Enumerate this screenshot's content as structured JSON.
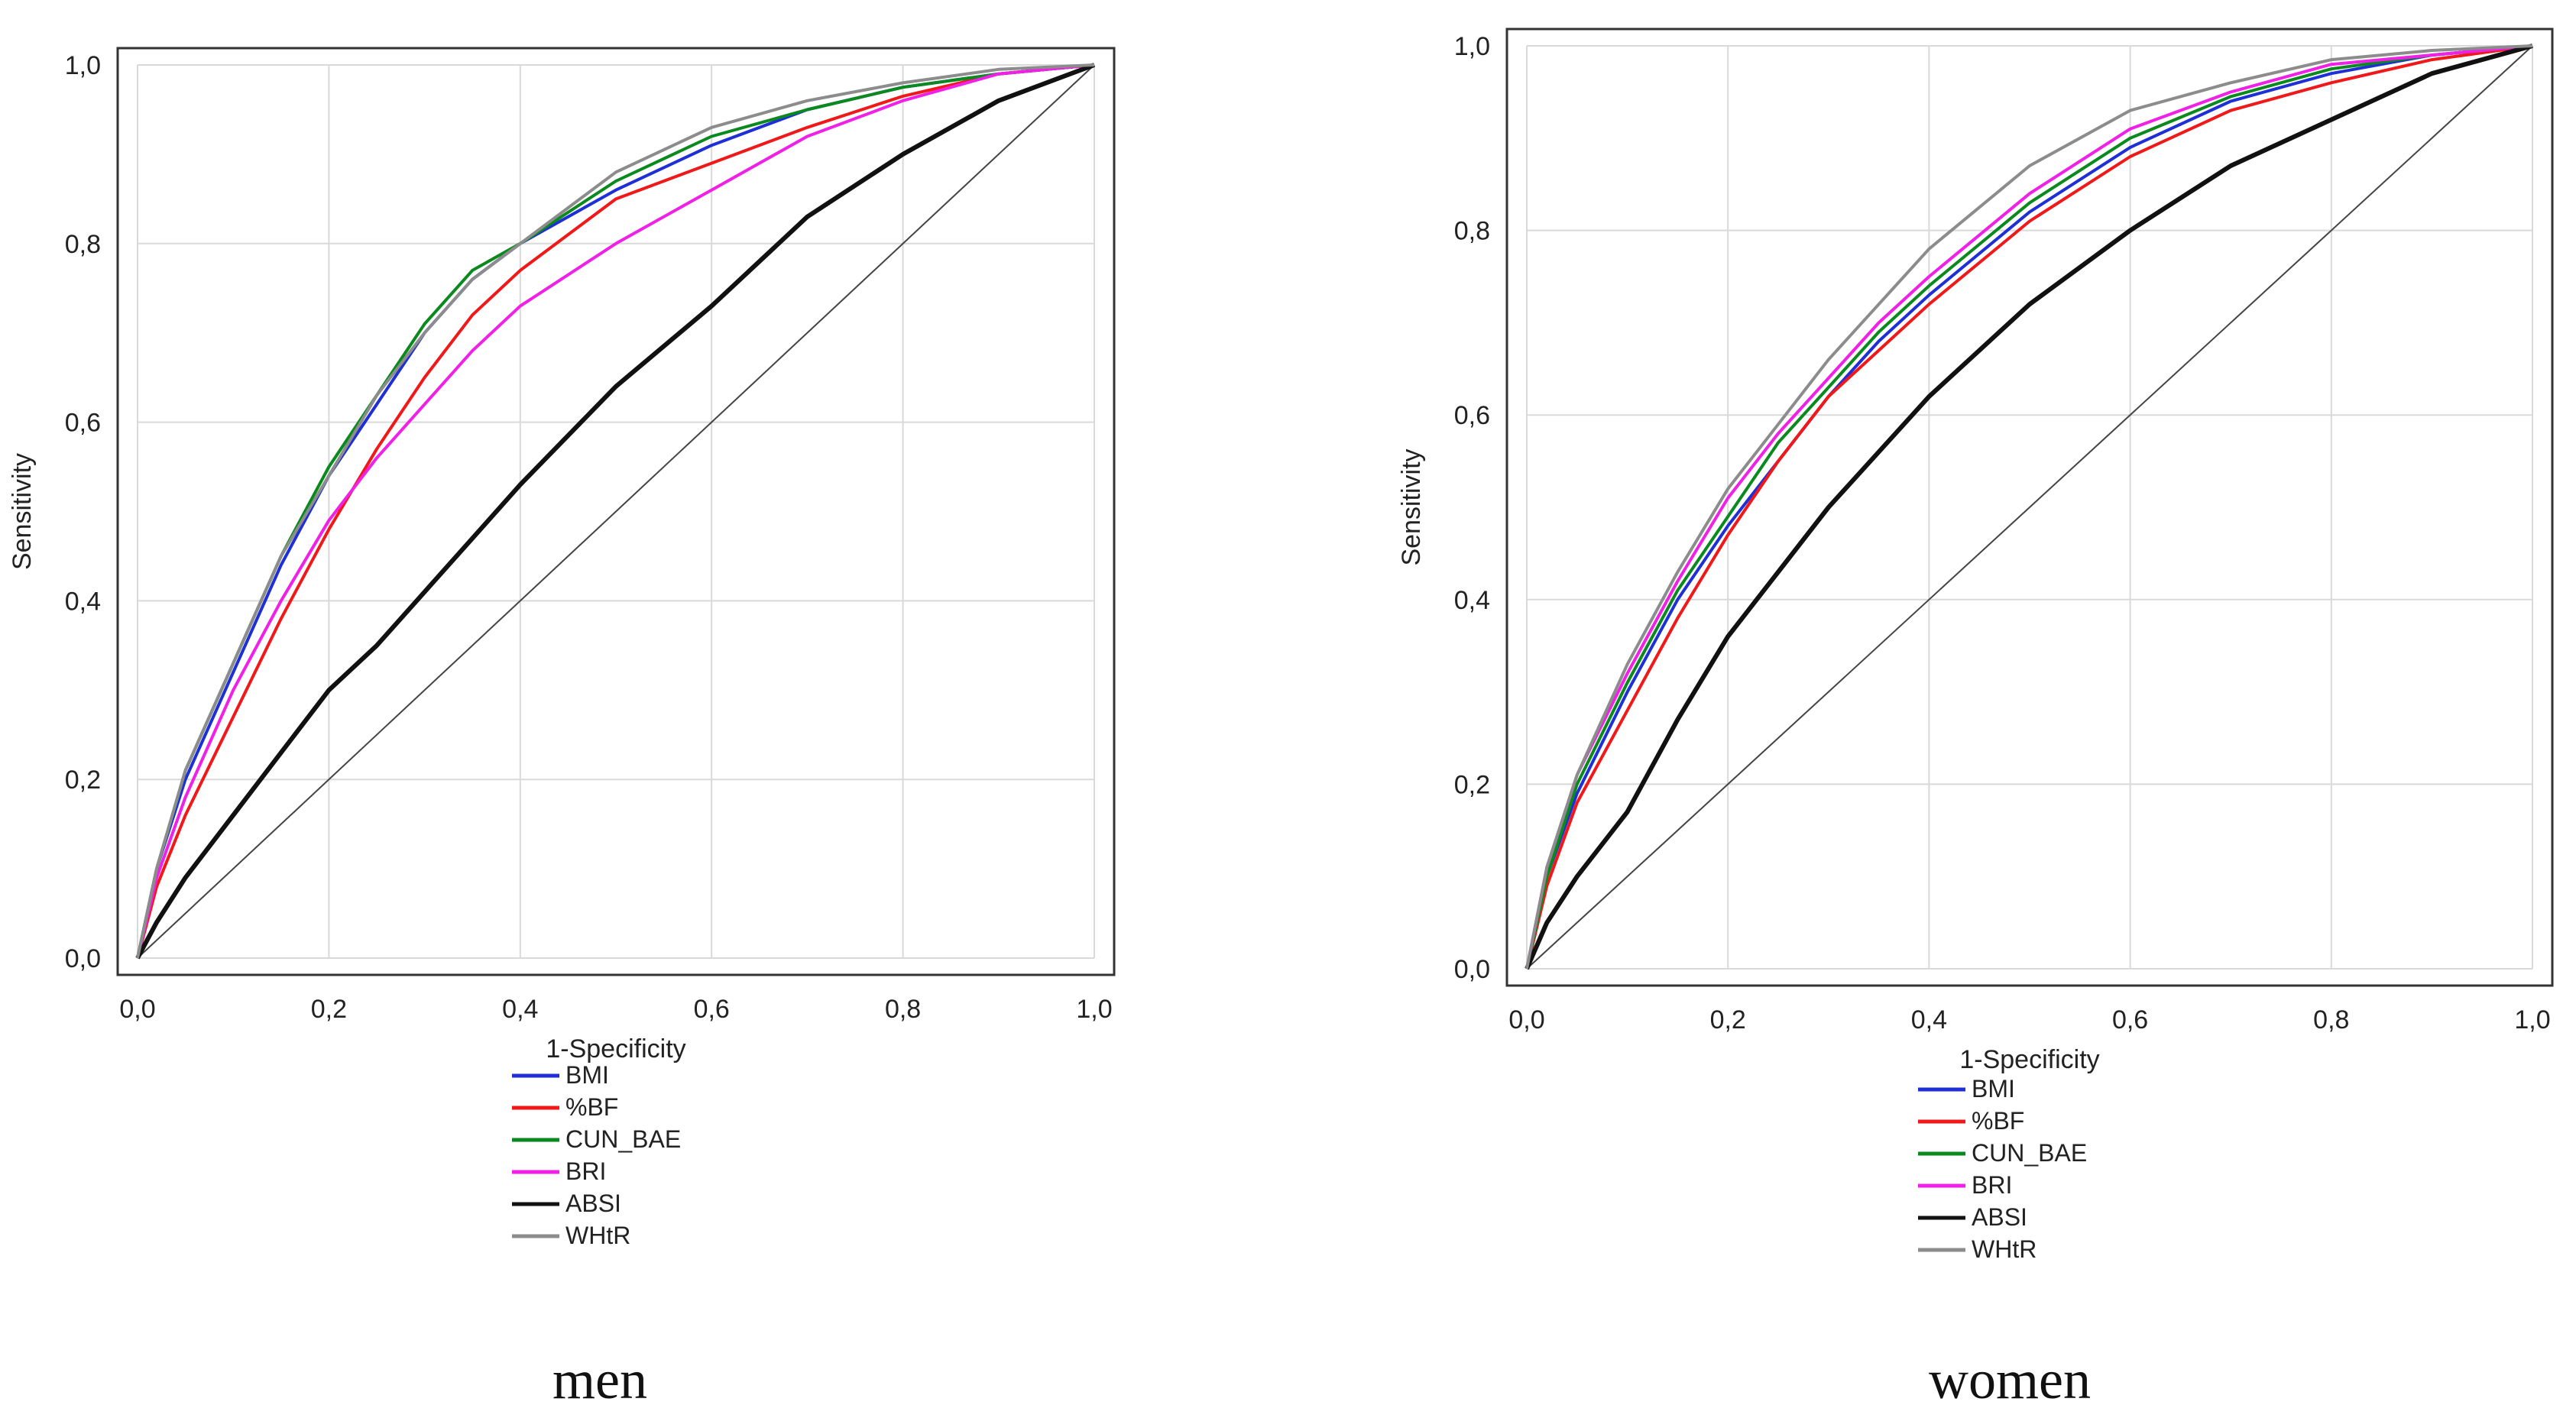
{
  "colors": {
    "BMI": "#1f2fd6",
    "%BF": "#f01818",
    "CUN_BAE": "#0a8a1e",
    "BRI": "#f020e6",
    "ABSI": "#111111",
    "WHtR": "#8c8c8c",
    "reference": "#444444",
    "grid": "#d9d9d9"
  },
  "chart_data": [
    {
      "type": "line",
      "caption": "men",
      "xlabel": "1-Specificity",
      "ylabel": "Sensitivity",
      "xlim": [
        0,
        1
      ],
      "ylim": [
        0,
        1
      ],
      "grid": true,
      "xticks": [
        "0,0",
        "0,2",
        "0,4",
        "0,6",
        "0,8",
        "1,0"
      ],
      "yticks": [
        "0,0",
        "0,2",
        "0,4",
        "0,6",
        "0,8",
        "1,0"
      ],
      "legend_position": "bottom",
      "legend": [
        "BMI",
        "%BF",
        "CUN_BAE",
        "BRI",
        "ABSI",
        "WHtR"
      ],
      "x": [
        0,
        0.02,
        0.05,
        0.1,
        0.15,
        0.2,
        0.25,
        0.3,
        0.35,
        0.4,
        0.5,
        0.6,
        0.7,
        0.8,
        0.9,
        1.0
      ],
      "series": [
        {
          "name": "BMI",
          "values": [
            0,
            0.1,
            0.2,
            0.32,
            0.44,
            0.54,
            0.62,
            0.7,
            0.76,
            0.8,
            0.86,
            0.91,
            0.95,
            0.975,
            0.99,
            1.0
          ]
        },
        {
          "name": "%BF",
          "values": [
            0,
            0.08,
            0.16,
            0.27,
            0.38,
            0.48,
            0.57,
            0.65,
            0.72,
            0.77,
            0.85,
            0.89,
            0.93,
            0.965,
            0.99,
            1.0
          ]
        },
        {
          "name": "CUN_BAE",
          "values": [
            0,
            0.1,
            0.21,
            0.33,
            0.45,
            0.55,
            0.63,
            0.71,
            0.77,
            0.8,
            0.87,
            0.92,
            0.95,
            0.975,
            0.99,
            1.0
          ]
        },
        {
          "name": "BRI",
          "values": [
            0,
            0.09,
            0.18,
            0.3,
            0.4,
            0.49,
            0.56,
            0.62,
            0.68,
            0.73,
            0.8,
            0.86,
            0.92,
            0.96,
            0.99,
            1.0
          ]
        },
        {
          "name": "ABSI",
          "values": [
            0,
            0.04,
            0.09,
            0.16,
            0.23,
            0.3,
            0.35,
            0.41,
            0.47,
            0.53,
            0.64,
            0.73,
            0.83,
            0.9,
            0.96,
            1.0
          ]
        },
        {
          "name": "WHtR",
          "values": [
            0,
            0.1,
            0.21,
            0.33,
            0.45,
            0.54,
            0.63,
            0.7,
            0.76,
            0.8,
            0.88,
            0.93,
            0.96,
            0.98,
            0.995,
            1.0
          ]
        }
      ]
    },
    {
      "type": "line",
      "caption": "women",
      "xlabel": "1-Specificity",
      "ylabel": "Sensitivity",
      "xlim": [
        0,
        1
      ],
      "ylim": [
        0,
        1
      ],
      "grid": true,
      "xticks": [
        "0,0",
        "0,2",
        "0,4",
        "0,6",
        "0,8",
        "1,0"
      ],
      "yticks": [
        "0,0",
        "0,2",
        "0,4",
        "0,6",
        "0,8",
        "1,0"
      ],
      "legend_position": "bottom",
      "legend": [
        "BMI",
        "%BF",
        "CUN_BAE",
        "BRI",
        "ABSI",
        "WHtR"
      ],
      "x": [
        0,
        0.02,
        0.05,
        0.1,
        0.15,
        0.2,
        0.25,
        0.3,
        0.35,
        0.4,
        0.5,
        0.6,
        0.7,
        0.8,
        0.9,
        1.0
      ],
      "series": [
        {
          "name": "BMI",
          "values": [
            0,
            0.1,
            0.19,
            0.3,
            0.4,
            0.48,
            0.55,
            0.62,
            0.68,
            0.73,
            0.82,
            0.89,
            0.94,
            0.97,
            0.99,
            1.0
          ]
        },
        {
          "name": "%BF",
          "values": [
            0,
            0.09,
            0.18,
            0.28,
            0.38,
            0.47,
            0.55,
            0.62,
            0.67,
            0.72,
            0.81,
            0.88,
            0.93,
            0.96,
            0.985,
            1.0
          ]
        },
        {
          "name": "CUN_BAE",
          "values": [
            0,
            0.1,
            0.2,
            0.31,
            0.41,
            0.49,
            0.57,
            0.63,
            0.69,
            0.74,
            0.83,
            0.9,
            0.945,
            0.975,
            0.99,
            1.0
          ]
        },
        {
          "name": "BRI",
          "values": [
            0,
            0.11,
            0.21,
            0.32,
            0.42,
            0.51,
            0.58,
            0.64,
            0.7,
            0.75,
            0.84,
            0.91,
            0.95,
            0.98,
            0.99,
            1.0
          ]
        },
        {
          "name": "ABSI",
          "values": [
            0,
            0.05,
            0.1,
            0.17,
            0.27,
            0.36,
            0.43,
            0.5,
            0.56,
            0.62,
            0.72,
            0.8,
            0.87,
            0.92,
            0.97,
            1.0
          ]
        },
        {
          "name": "WHtR",
          "values": [
            0,
            0.11,
            0.21,
            0.33,
            0.43,
            0.52,
            0.59,
            0.66,
            0.72,
            0.78,
            0.87,
            0.93,
            0.96,
            0.985,
            0.995,
            1.0
          ]
        }
      ]
    }
  ]
}
